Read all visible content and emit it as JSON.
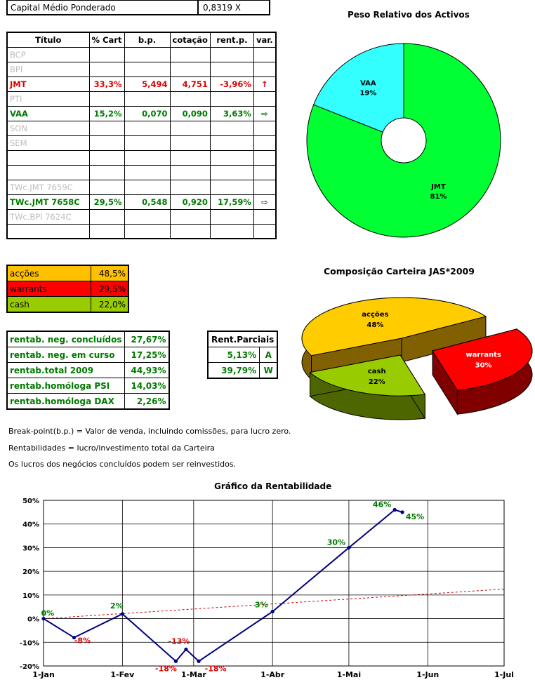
{
  "header": {
    "label": "Capital Médio Ponderado",
    "value": "0,8319 X"
  },
  "table": {
    "columns": [
      "Título",
      "% Cart",
      "b.p.",
      "cotação",
      "rent.p.",
      "var."
    ],
    "rows": [
      {
        "titulo": "BCP",
        "cart": "",
        "bp": "",
        "cot": "",
        "rent": "",
        "var": "",
        "style": "grey"
      },
      {
        "titulo": "BPI",
        "cart": "",
        "bp": "",
        "cot": "",
        "rent": "",
        "var": "",
        "style": "grey"
      },
      {
        "titulo": "JMT",
        "cart": "33,3%",
        "bp": "5,494",
        "cot": "4,751",
        "rent": "-3,96%",
        "var": "↑",
        "style": "red"
      },
      {
        "titulo": "PTI",
        "cart": "",
        "bp": "",
        "cot": "",
        "rent": "",
        "var": "",
        "style": "grey"
      },
      {
        "titulo": "VAA",
        "cart": "15,2%",
        "bp": "0,070",
        "cot": "0,090",
        "rent": "3,63%",
        "var": "⇨",
        "style": "green"
      },
      {
        "titulo": "SON",
        "cart": "",
        "bp": "",
        "cot": "",
        "rent": "",
        "var": "",
        "style": "grey"
      },
      {
        "titulo": "SEM",
        "cart": "",
        "bp": "",
        "cot": "",
        "rent": "",
        "var": "",
        "style": "grey"
      },
      {
        "titulo": "",
        "cart": "",
        "bp": "",
        "cot": "",
        "rent": "",
        "var": "",
        "style": "grey"
      },
      {
        "titulo": "",
        "cart": "",
        "bp": "",
        "cot": "",
        "rent": "",
        "var": "",
        "style": "grey"
      },
      {
        "titulo": "TWc.JMT 7659C",
        "cart": "",
        "bp": "",
        "cot": "",
        "rent": "",
        "var": "",
        "style": "grey"
      },
      {
        "titulo": "TWc.JMT 7658C",
        "cart": "29,5%",
        "bp": "0,548",
        "cot": "0,920",
        "rent": "17,59%",
        "var": "⇨",
        "style": "green"
      },
      {
        "titulo": "TWc.BPI 7624C",
        "cart": "",
        "bp": "",
        "cot": "",
        "rent": "",
        "var": "",
        "style": "grey"
      },
      {
        "titulo": "",
        "cart": "",
        "bp": "",
        "cot": "",
        "rent": "",
        "var": "",
        "style": "grey"
      }
    ]
  },
  "allocation": [
    {
      "label": "acções",
      "value": "48,5%",
      "color": "#ffc000"
    },
    {
      "label": "warrants",
      "value": "29,5%",
      "color": "#ff0000"
    },
    {
      "label": "cash",
      "value": "22,0%",
      "color": "#99cc00"
    }
  ],
  "rentabilidade": [
    {
      "label": "rentab. neg. concluídos",
      "value": "27,67%"
    },
    {
      "label": "rentab. neg. em curso",
      "value": "17,25%"
    },
    {
      "label": "rentab.total 2009",
      "value": "44,93%"
    },
    {
      "label": "rentab.homóloga PSI",
      "value": "14,03%"
    },
    {
      "label": "rentab.homóloga DAX",
      "value": "2,26%"
    }
  ],
  "parciais": {
    "header": "Rent.Parciais",
    "rows": [
      {
        "value": "5,13%",
        "tag": "A"
      },
      {
        "value": "39,79%",
        "tag": "W"
      }
    ]
  },
  "notes": [
    "Break-point(b.p.) = Valor de venda, incluindo comissões, para lucro zero.",
    "Rentabilidades = lucro/investimento total da Carteira",
    "Os lucros dos negócios concluídos podem ser reinvestidos."
  ],
  "chart_data": [
    {
      "type": "pie",
      "title": "Peso Relativo dos Activos",
      "labels": [
        "JMT",
        "VAA"
      ],
      "values": [
        81,
        19
      ],
      "value_labels": [
        "81%",
        "19%"
      ],
      "colors": [
        "#00ff33",
        "#33ffff"
      ],
      "doughnut": true
    },
    {
      "type": "pie",
      "title": "Composição Carteira JAS*2009",
      "labels": [
        "acções",
        "warrants",
        "cash"
      ],
      "values": [
        48,
        30,
        22
      ],
      "value_labels": [
        "48%",
        "30%",
        "22%"
      ],
      "colors": [
        "#ffcc00",
        "#ff0000",
        "#99cc00"
      ],
      "three_d": true
    },
    {
      "type": "line",
      "title": "Gráfico da Rentabilidade",
      "x_ticks": [
        "1-Jan",
        "1-Fev",
        "1-Mar",
        "1-Abr",
        "1-Mai",
        "1-Jun",
        "1-Jul"
      ],
      "y_ticks": [
        "-20%",
        "-10%",
        "0%",
        "10%",
        "20%",
        "30%",
        "40%",
        "50%"
      ],
      "ylim": [
        -20,
        50
      ],
      "series": [
        {
          "values": [
            {
              "x": "2009-01-01",
              "y": 0,
              "label": "0%",
              "lcolor": "#007a00"
            },
            {
              "x": "2009-01-13",
              "y": -8,
              "label": "-8%",
              "lcolor": "#e00000"
            },
            {
              "x": "2009-02-01",
              "y": 2,
              "label": "2%",
              "lcolor": "#007a00"
            },
            {
              "x": "2009-02-22",
              "y": -18,
              "label": "-18%",
              "lcolor": "#e00000"
            },
            {
              "x": "2009-02-26",
              "y": -13,
              "label": "-13%",
              "lcolor": "#e00000"
            },
            {
              "x": "2009-03-03",
              "y": -18,
              "label": "-18%",
              "lcolor": "#e00000"
            },
            {
              "x": "2009-04-01",
              "y": 3,
              "label": "3%",
              "lcolor": "#007a00"
            },
            {
              "x": "2009-05-01",
              "y": 30,
              "label": "30%",
              "lcolor": "#007a00"
            },
            {
              "x": "2009-05-19",
              "y": 46,
              "label": "46%",
              "lcolor": "#007a00"
            },
            {
              "x": "2009-05-22",
              "y": 45,
              "label": "45%",
              "lcolor": "#007a00"
            }
          ]
        }
      ],
      "trend": {
        "from": {
          "x": "2009-01-01",
          "y": 0
        },
        "to": {
          "x": "2009-07-01",
          "y": 12.5
        },
        "color": "#cc0000"
      }
    }
  ]
}
